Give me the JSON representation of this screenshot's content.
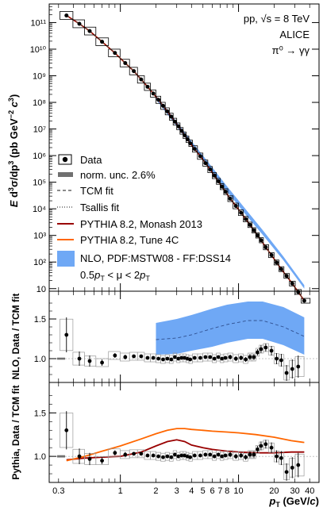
{
  "colors": {
    "data": "#000000",
    "norm_unc": "#707070",
    "tcm": "#444444",
    "tsallis": "#444444",
    "monash": "#990000",
    "tune4c": "#ff6600",
    "nlo_band": "#6fa8f5",
    "nlo_center": "#2f4f8f",
    "syst_box": "#999999"
  },
  "icons": {
    "legend_marker": "filled-circle-with-box",
    "norm_unc": "gray-bar",
    "nlo": "blue-filled-band"
  },
  "chart_data": [
    {
      "type": "scatter",
      "panel": "spectrum",
      "annotation": {
        "system": "pp, √s = 8 TeV",
        "experiment": "ALICE",
        "channel": "π⁰ → γγ"
      },
      "ylabel": "E d³σ/dp³ (pb GeV⁻² c³)",
      "y_scale": "log",
      "ylim": [
        8,
        500000000000.0
      ],
      "xlim": [
        0.25,
        48
      ],
      "x_scale": "log",
      "y_ticks": [
        "10",
        "10²",
        "10³",
        "10⁴",
        "10⁵",
        "10⁶",
        "10⁷",
        "10⁸",
        "10⁹",
        "10¹⁰",
        "10¹¹"
      ],
      "legend": {
        "placement": "bottom-left",
        "entries": [
          "Data",
          "norm. unc. 2.6%",
          "TCM fit",
          "Tsallis fit",
          "PYTHIA 8.2, Monash 2013",
          "PYTHIA 8.2, Tune 4C",
          "NLO, PDF:MSTW08 - FF:DSS14",
          "0.5pT < μ < 2pT"
        ]
      },
      "series": [
        {
          "name": "Data",
          "x": [
            0.35,
            0.45,
            0.55,
            0.7,
            0.9,
            1.1,
            1.3,
            1.5,
            1.7,
            1.9,
            2.1,
            2.3,
            2.5,
            2.7,
            2.9,
            3.1,
            3.3,
            3.5,
            3.7,
            3.9,
            4.25,
            4.75,
            5.25,
            5.75,
            6.25,
            6.75,
            7.25,
            7.75,
            8.5,
            9.5,
            10.5,
            11.5,
            12.5,
            13.5,
            14.5,
            15.5,
            17.0,
            19.0,
            21.0,
            23.0,
            25.5,
            28.5,
            32.0,
            36.0
          ],
          "y": [
            185000000000.0,
            90000000000.0,
            48000000000.0,
            19000000000.0,
            7200000000.0,
            3000000000.0,
            1500000000.0,
            730000000.0,
            385000000.0,
            215000000.0,
            125000000.0,
            74000000.0,
            46000000.0,
            29000000.0,
            18800000.0,
            12600000.0,
            8500000.0,
            5800000.0,
            4100000.0,
            2900000.0,
            1780000.0,
            950000.0,
            520000.0,
            300000.0,
            177000.0,
            108000.0,
            68000.0,
            44000.0,
            24000.0,
            12800.0,
            7100.0,
            4100.0,
            2500.0,
            1550.0,
            1000.0,
            660.0,
            360.0,
            182.0,
            96,
            54,
            30,
            15.5,
            7.5,
            3.5
          ]
        },
        {
          "name": "NLO, PDF:MSTW08 - FF:DSS14",
          "x": [
            2.0,
            3.0,
            4.0,
            6.0,
            8.0,
            12.0,
            16.0,
            24.0,
            36.0
          ],
          "y_low": [
            130000000.0,
            12500000.0,
            2300000.0,
            230000.0,
            44000.0,
            4800.0,
            1060.0,
            115.0,
            10.0
          ],
          "y_high": [
            185000000.0,
            18500000.0,
            3500000.0,
            360000.0,
            70000.0,
            7600.0,
            1600.0,
            160.0,
            13.5
          ]
        }
      ]
    },
    {
      "type": "scatter",
      "panel": "ratio_nlo",
      "ylabel": "NLO, Data / TCM fit",
      "ylim": [
        0.7,
        1.85
      ],
      "xlim": [
        0.25,
        48
      ],
      "x_scale": "log",
      "y_ticks": [
        "1.0",
        "1.5"
      ],
      "series": [
        {
          "name": "Data",
          "x": [
            0.35,
            0.45,
            0.55,
            0.7,
            0.9,
            1.1,
            1.3,
            1.5,
            1.7,
            1.9,
            2.1,
            2.3,
            2.5,
            2.7,
            2.9,
            3.1,
            3.3,
            3.5,
            3.7,
            3.9,
            4.25,
            4.75,
            5.25,
            5.75,
            6.25,
            6.75,
            7.25,
            7.75,
            8.5,
            9.5,
            10.5,
            11.5,
            12.5,
            13.5,
            14.5,
            15.5,
            17.0,
            19.0,
            21.0,
            23.0,
            25.5,
            28.5,
            32.0
          ],
          "y": [
            1.3,
            1.0,
            0.97,
            0.95,
            1.04,
            1.02,
            1.03,
            1.03,
            1.01,
            1.01,
            1.0,
            0.99,
            1.0,
            0.99,
            1.02,
            1.0,
            1.01,
            1.01,
            1.0,
            0.99,
            1.01,
            1.01,
            1.02,
            1.02,
            1.0,
            1.02,
            1.0,
            1.01,
            1.02,
            1.0,
            1.01,
            0.99,
            1.02,
            1.02,
            1.08,
            1.12,
            1.14,
            1.1,
            1.0,
            0.98,
            0.82,
            0.87,
            0.9
          ],
          "y_err": [
            0.22,
            0.09,
            0.07,
            0.04,
            0.03,
            0.03,
            0.02,
            0.02,
            0.02,
            0.02,
            0.02,
            0.02,
            0.02,
            0.02,
            0.02,
            0.02,
            0.02,
            0.02,
            0.02,
            0.02,
            0.02,
            0.02,
            0.02,
            0.02,
            0.02,
            0.02,
            0.02,
            0.02,
            0.03,
            0.03,
            0.03,
            0.03,
            0.04,
            0.04,
            0.04,
            0.05,
            0.05,
            0.06,
            0.07,
            0.08,
            0.1,
            0.12,
            0.14
          ]
        },
        {
          "name": "NLO, PDF:MSTW08 - FF:DSS14",
          "x": [
            2.0,
            3.0,
            4.0,
            6.0,
            8.0,
            12.0,
            16.0,
            24.0,
            36.0
          ],
          "y_low": [
            1.05,
            1.06,
            1.1,
            1.15,
            1.2,
            1.25,
            1.25,
            1.17,
            1.05
          ],
          "y_center": [
            1.24,
            1.26,
            1.3,
            1.38,
            1.43,
            1.48,
            1.48,
            1.4,
            1.28
          ],
          "y_high": [
            1.45,
            1.5,
            1.55,
            1.63,
            1.68,
            1.72,
            1.72,
            1.65,
            1.52
          ]
        }
      ]
    },
    {
      "type": "line",
      "panel": "ratio_pythia",
      "ylabel": "Pythia, Data / TCM fit",
      "xlabel": "pT (GeV/c)",
      "ylim": [
        0.7,
        1.85
      ],
      "xlim": [
        0.25,
        48
      ],
      "x_scale": "log",
      "y_ticks": [
        "1.0",
        "1.5"
      ],
      "x_ticks": [
        "0.3",
        "1",
        "2",
        "3",
        "4",
        "5",
        "6",
        "7",
        "8",
        "10",
        "20",
        "30",
        "40"
      ],
      "series": [
        {
          "name": "Data",
          "x": [
            0.35,
            0.45,
            0.55,
            0.7,
            0.9,
            1.1,
            1.3,
            1.5,
            1.7,
            1.9,
            2.1,
            2.3,
            2.5,
            2.7,
            2.9,
            3.1,
            3.3,
            3.5,
            3.7,
            3.9,
            4.25,
            4.75,
            5.25,
            5.75,
            6.25,
            6.75,
            7.25,
            7.75,
            8.5,
            9.5,
            10.5,
            11.5,
            12.5,
            13.5,
            14.5,
            15.5,
            17.0,
            19.0,
            21.0,
            23.0,
            25.5,
            28.5,
            32.0
          ],
          "y": [
            1.3,
            1.0,
            0.97,
            0.95,
            1.04,
            1.02,
            1.03,
            1.03,
            1.01,
            1.01,
            1.0,
            0.99,
            1.0,
            0.99,
            1.02,
            1.0,
            1.01,
            1.01,
            1.0,
            0.99,
            1.01,
            1.01,
            1.02,
            1.02,
            1.0,
            1.02,
            1.0,
            1.01,
            1.02,
            1.0,
            1.01,
            0.99,
            1.02,
            1.02,
            1.08,
            1.12,
            1.14,
            1.1,
            1.0,
            0.98,
            0.82,
            0.87,
            0.9
          ],
          "y_err": [
            0.22,
            0.09,
            0.07,
            0.04,
            0.03,
            0.03,
            0.02,
            0.02,
            0.02,
            0.02,
            0.02,
            0.02,
            0.02,
            0.02,
            0.02,
            0.02,
            0.02,
            0.02,
            0.02,
            0.02,
            0.02,
            0.02,
            0.02,
            0.02,
            0.02,
            0.02,
            0.02,
            0.02,
            0.03,
            0.03,
            0.03,
            0.03,
            0.04,
            0.04,
            0.04,
            0.05,
            0.05,
            0.06,
            0.07,
            0.08,
            0.1,
            0.12,
            0.14
          ]
        },
        {
          "name": "PYTHIA 8.2, Monash 2013",
          "x": [
            0.35,
            0.5,
            0.7,
            1.0,
            1.5,
            2.0,
            2.5,
            3.0,
            3.5,
            4.0,
            5.0,
            6.0,
            8.0,
            10.0,
            14.0,
            20.0,
            28.0,
            36.0
          ],
          "y": [
            0.96,
            0.98,
            0.99,
            1.0,
            1.05,
            1.12,
            1.17,
            1.19,
            1.17,
            1.13,
            1.1,
            1.08,
            1.06,
            1.05,
            1.04,
            1.04,
            1.05,
            1.05
          ]
        },
        {
          "name": "PYTHIA 8.2, Tune 4C",
          "x": [
            0.35,
            0.5,
            0.7,
            1.0,
            1.5,
            2.0,
            2.5,
            3.0,
            3.5,
            4.0,
            5.0,
            6.0,
            8.0,
            10.0,
            14.0,
            20.0,
            28.0,
            36.0
          ],
          "y": [
            0.95,
            1.0,
            1.06,
            1.12,
            1.2,
            1.26,
            1.3,
            1.32,
            1.32,
            1.31,
            1.3,
            1.29,
            1.28,
            1.27,
            1.25,
            1.22,
            1.18,
            1.16
          ]
        }
      ]
    }
  ]
}
